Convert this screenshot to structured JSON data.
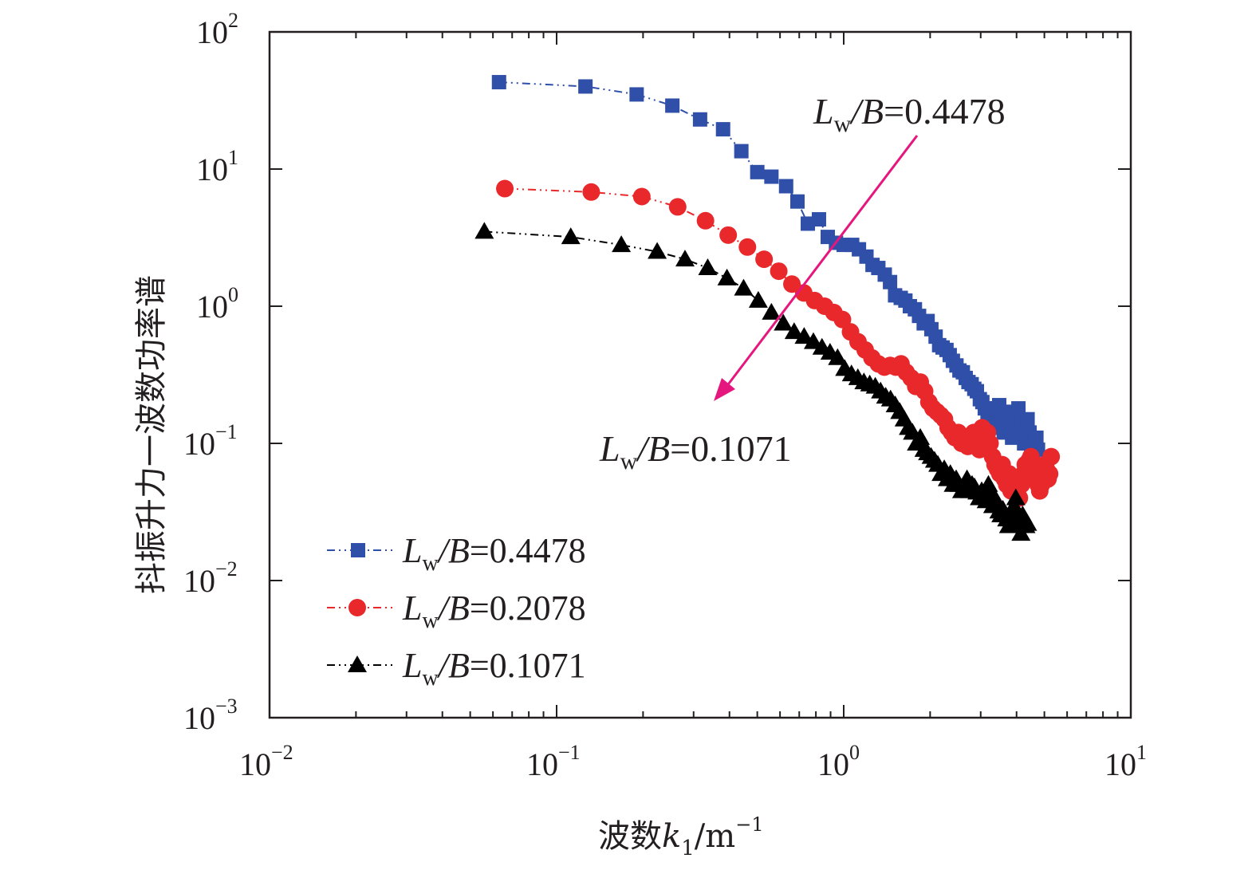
{
  "chart_data": {
    "type": "scatter",
    "title": "",
    "xscale": "log",
    "yscale": "log",
    "xlim": [
      0.01,
      10
    ],
    "ylim": [
      0.001,
      100
    ],
    "xlabel": {
      "main": "波数",
      "var": "k",
      "sub": "1",
      "unit": "/m",
      "unit_exp": "−1"
    },
    "ylabel": "抖振升力一波数功率谱",
    "x_ticks": [
      {
        "base": "10",
        "exp": "−2"
      },
      {
        "base": "10",
        "exp": "−1"
      },
      {
        "base": "10",
        "exp": "0"
      },
      {
        "base": "10",
        "exp": "1"
      }
    ],
    "y_ticks": [
      {
        "base": "10",
        "exp": "−3"
      },
      {
        "base": "10",
        "exp": "−2"
      },
      {
        "base": "10",
        "exp": "−1"
      },
      {
        "base": "10",
        "exp": "0"
      },
      {
        "base": "10",
        "exp": "1"
      },
      {
        "base": "10",
        "exp": "2"
      }
    ],
    "series": [
      {
        "name": "Lw/B=0.4478",
        "ratio": "0.4478",
        "color": "#2f4fa8",
        "marker": "square",
        "x": [
          0.063,
          0.126,
          0.19,
          0.253,
          0.316,
          0.38,
          0.44,
          0.5,
          0.56,
          0.63,
          0.69,
          0.75,
          0.82,
          0.88,
          0.94,
          1.0,
          1.07,
          1.13,
          1.2,
          1.26,
          1.32,
          1.39,
          1.45,
          1.51,
          1.58,
          1.64,
          1.7,
          1.77,
          1.83,
          1.9,
          1.96,
          2.02,
          2.09,
          2.15,
          2.21,
          2.28,
          2.34,
          2.4,
          2.47,
          2.53,
          2.6,
          2.66,
          2.72,
          2.79,
          2.85,
          2.91,
          2.98,
          3.04,
          3.1,
          3.17,
          3.23,
          3.29,
          3.36,
          3.42,
          3.48,
          3.55,
          3.61,
          3.67,
          3.74,
          3.8,
          3.86,
          3.93,
          3.99,
          4.06,
          4.12,
          4.18,
          4.25,
          4.31,
          4.37,
          4.44,
          4.5,
          4.56,
          4.63,
          4.69,
          4.75
        ],
        "y": [
          43,
          40,
          35,
          29,
          23,
          19.5,
          13.5,
          9.5,
          8.8,
          7.5,
          5.8,
          4.0,
          4.3,
          3.2,
          2.9,
          2.8,
          2.8,
          2.6,
          2.3,
          2.0,
          1.9,
          1.7,
          1.5,
          1.2,
          1.15,
          1.1,
          1.0,
          0.95,
          0.85,
          0.75,
          0.78,
          0.68,
          0.6,
          0.52,
          0.5,
          0.48,
          0.44,
          0.4,
          0.37,
          0.34,
          0.33,
          0.3,
          0.28,
          0.27,
          0.25,
          0.24,
          0.21,
          0.2,
          0.18,
          0.16,
          0.14,
          0.13,
          0.17,
          0.18,
          0.19,
          0.15,
          0.12,
          0.14,
          0.17,
          0.16,
          0.11,
          0.13,
          0.15,
          0.18,
          0.12,
          0.14,
          0.1,
          0.13,
          0.15,
          0.12,
          0.09,
          0.08,
          0.1,
          0.11,
          0.09
        ]
      },
      {
        "name": "Lw/B=0.2078",
        "ratio": "0.2078",
        "color": "#e8282b",
        "marker": "circle",
        "x": [
          0.066,
          0.132,
          0.198,
          0.264,
          0.33,
          0.396,
          0.462,
          0.528,
          0.594,
          0.66,
          0.726,
          0.792,
          0.858,
          0.924,
          0.99,
          1.056,
          1.122,
          1.188,
          1.254,
          1.32,
          1.386,
          1.452,
          1.518,
          1.584,
          1.65,
          1.716,
          1.782,
          1.848,
          1.914,
          1.98,
          2.046,
          2.112,
          2.178,
          2.244,
          2.31,
          2.376,
          2.442,
          2.508,
          2.574,
          2.64,
          2.706,
          2.772,
          2.838,
          2.904,
          2.97,
          3.036,
          3.102,
          3.168,
          3.234,
          3.3,
          3.366,
          3.432,
          3.498,
          3.564,
          3.63,
          3.696,
          3.762,
          3.828,
          3.894,
          3.96,
          4.026,
          4.092,
          4.158,
          4.224,
          4.29,
          4.356,
          4.422,
          4.488,
          4.554,
          4.62,
          4.686,
          4.752,
          4.818,
          4.884,
          4.95,
          5.016,
          5.082,
          5.148,
          5.214,
          5.28
        ],
        "y": [
          7.2,
          6.8,
          6.3,
          5.3,
          4.2,
          3.3,
          2.7,
          2.2,
          1.8,
          1.45,
          1.25,
          1.1,
          1.0,
          0.9,
          0.8,
          0.65,
          0.55,
          0.48,
          0.42,
          0.38,
          0.36,
          0.37,
          0.36,
          0.38,
          0.33,
          0.3,
          0.26,
          0.28,
          0.24,
          0.2,
          0.18,
          0.17,
          0.16,
          0.15,
          0.13,
          0.12,
          0.11,
          0.12,
          0.1,
          0.11,
          0.095,
          0.1,
          0.12,
          0.11,
          0.09,
          0.13,
          0.11,
          0.12,
          0.1,
          0.08,
          0.07,
          0.065,
          0.06,
          0.07,
          0.055,
          0.05,
          0.06,
          0.045,
          0.05,
          0.055,
          0.045,
          0.04,
          0.05,
          0.06,
          0.07,
          0.065,
          0.075,
          0.08,
          0.07,
          0.06,
          0.055,
          0.05,
          0.045,
          0.05,
          0.06,
          0.07,
          0.065,
          0.055,
          0.06,
          0.08
        ]
      },
      {
        "name": "Lw/B=0.1071",
        "ratio": "0.1071",
        "color": "#000000",
        "marker": "triangle",
        "x": [
          0.056,
          0.112,
          0.168,
          0.224,
          0.28,
          0.336,
          0.392,
          0.448,
          0.504,
          0.56,
          0.616,
          0.672,
          0.728,
          0.784,
          0.84,
          0.896,
          0.952,
          1.008,
          1.064,
          1.12,
          1.176,
          1.232,
          1.288,
          1.344,
          1.4,
          1.456,
          1.512,
          1.568,
          1.624,
          1.68,
          1.736,
          1.792,
          1.848,
          1.904,
          1.96,
          2.016,
          2.072,
          2.128,
          2.184,
          2.24,
          2.296,
          2.352,
          2.408,
          2.464,
          2.52,
          2.576,
          2.632,
          2.688,
          2.744,
          2.8,
          2.856,
          2.912,
          2.968,
          3.024,
          3.08,
          3.136,
          3.192,
          3.248,
          3.304,
          3.36,
          3.416,
          3.472,
          3.528,
          3.584,
          3.64,
          3.696,
          3.752,
          3.808,
          3.864,
          3.92,
          3.976,
          4.032,
          4.088,
          4.144,
          4.2,
          4.256,
          4.312,
          4.368
        ],
        "y": [
          3.5,
          3.2,
          2.8,
          2.5,
          2.2,
          1.9,
          1.6,
          1.35,
          1.1,
          0.9,
          0.75,
          0.65,
          0.6,
          0.55,
          0.5,
          0.46,
          0.42,
          0.35,
          0.32,
          0.3,
          0.28,
          0.27,
          0.26,
          0.24,
          0.22,
          0.21,
          0.19,
          0.17,
          0.15,
          0.13,
          0.12,
          0.1,
          0.11,
          0.09,
          0.085,
          0.08,
          0.075,
          0.07,
          0.06,
          0.065,
          0.055,
          0.06,
          0.05,
          0.055,
          0.05,
          0.045,
          0.05,
          0.055,
          0.045,
          0.05,
          0.048,
          0.044,
          0.04,
          0.045,
          0.04,
          0.038,
          0.05,
          0.042,
          0.035,
          0.04,
          0.036,
          0.032,
          0.03,
          0.033,
          0.03,
          0.028,
          0.025,
          0.03,
          0.028,
          0.035,
          0.04,
          0.03,
          0.025,
          0.022,
          0.03,
          0.028,
          0.025,
          0.026
        ]
      }
    ],
    "annotations": [
      {
        "prefix": "L",
        "sub": "w",
        "mid": "/B",
        "text": "=0.4478",
        "position": "top-right"
      },
      {
        "prefix": "L",
        "sub": "w",
        "mid": "/B",
        "text": "=0.1071",
        "position": "center"
      }
    ],
    "arrow_color": "#e5177f",
    "legend": {
      "position": "bottom-left"
    }
  }
}
